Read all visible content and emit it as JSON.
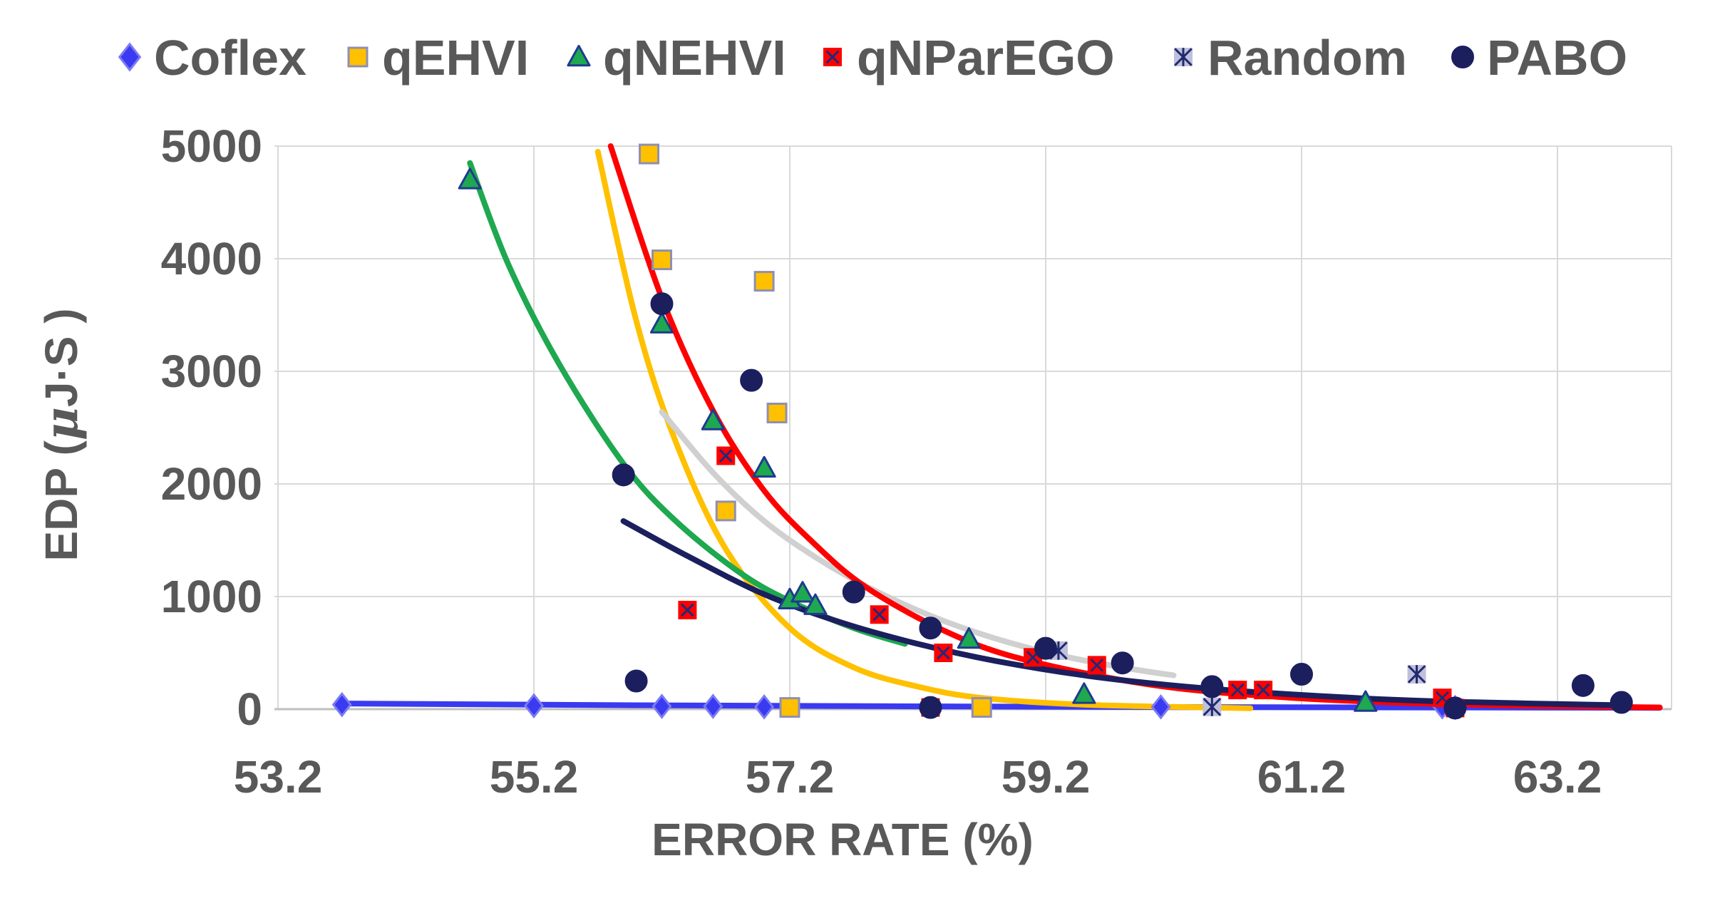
{
  "chart_data": {
    "type": "scatter",
    "title": "",
    "xlabel": "ERROR RATE (%)",
    "ylabel_parts": {
      "before": "EDP (",
      "mu": "μ",
      "after": "J·S )"
    },
    "xlim": [
      53.2,
      64.1
    ],
    "ylim": [
      0,
      5000
    ],
    "xticks": [
      53.2,
      55.2,
      57.2,
      59.2,
      61.2,
      63.2
    ],
    "xtick_labels": [
      "53.2",
      "55.2",
      "57.2",
      "59.2",
      "61.2",
      "63.2"
    ],
    "yticks": [
      0,
      1000,
      2000,
      3000,
      4000,
      5000
    ],
    "ytick_labels": [
      "0",
      "1000",
      "2000",
      "3000",
      "4000",
      "5000"
    ],
    "grid": true,
    "legend_position": "top",
    "series": [
      {
        "name": "Coflex",
        "marker": "diamond",
        "color": "#3a3af0",
        "edge": "#7a7af7",
        "points": [
          [
            53.7,
            40
          ],
          [
            55.2,
            30
          ],
          [
            56.2,
            25
          ],
          [
            56.6,
            25
          ],
          [
            57.0,
            20
          ],
          [
            60.1,
            20
          ],
          [
            62.3,
            20
          ],
          [
            62.4,
            15
          ]
        ]
      },
      {
        "name": "qEHVI",
        "marker": "square",
        "color": "#ffc000",
        "edge": "#8f8fb0",
        "points": [
          [
            56.1,
            4930
          ],
          [
            56.2,
            3990
          ],
          [
            57.0,
            3800
          ],
          [
            57.1,
            2630
          ],
          [
            56.7,
            1760
          ],
          [
            57.2,
            15
          ],
          [
            58.7,
            15
          ]
        ]
      },
      {
        "name": "qNEHVI",
        "marker": "triangle",
        "color": "#1ea84f",
        "edge": "#1f3b8f",
        "points": [
          [
            54.7,
            4700
          ],
          [
            56.2,
            3420
          ],
          [
            56.6,
            2560
          ],
          [
            57.0,
            2140
          ],
          [
            57.2,
            970
          ],
          [
            57.3,
            1030
          ],
          [
            57.4,
            920
          ],
          [
            58.6,
            620
          ],
          [
            59.5,
            130
          ],
          [
            61.7,
            60
          ]
        ]
      },
      {
        "name": "qNParEGO",
        "marker": "xsquare",
        "color": "#ff0000",
        "edge": "#1f2a7a",
        "points": [
          [
            56.4,
            880
          ],
          [
            56.7,
            2250
          ],
          [
            57.9,
            840
          ],
          [
            58.4,
            500
          ],
          [
            59.1,
            460
          ],
          [
            59.6,
            390
          ],
          [
            60.7,
            170
          ],
          [
            60.9,
            170
          ],
          [
            62.3,
            100
          ],
          [
            62.4,
            10
          ],
          [
            58.3,
            15
          ]
        ]
      },
      {
        "name": "Random",
        "marker": "asterisk",
        "color": "#c0c0dc",
        "edge": "#1f2a6e",
        "points": [
          [
            59.3,
            520
          ],
          [
            62.1,
            310
          ],
          [
            60.5,
            20
          ]
        ]
      },
      {
        "name": "PABO",
        "marker": "circle",
        "color": "#1b1f5e",
        "edge": "#1b1f5e",
        "points": [
          [
            55.9,
            2080
          ],
          [
            56.0,
            250
          ],
          [
            56.2,
            3600
          ],
          [
            56.9,
            2920
          ],
          [
            57.7,
            1040
          ],
          [
            58.3,
            720
          ],
          [
            59.2,
            540
          ],
          [
            59.8,
            410
          ],
          [
            60.5,
            200
          ],
          [
            61.2,
            310
          ],
          [
            63.4,
            210
          ],
          [
            63.7,
            60
          ],
          [
            58.3,
            15
          ],
          [
            62.4,
            10
          ]
        ]
      }
    ],
    "trendlines": [
      {
        "name": "Coflex trend",
        "color": "#3a3af0",
        "width": 8,
        "x_from": 53.7,
        "x_to": 64.0,
        "points": [
          [
            53.7,
            50
          ],
          [
            56.0,
            35
          ],
          [
            59.0,
            22
          ],
          [
            62.0,
            15
          ],
          [
            64.0,
            12
          ]
        ]
      },
      {
        "name": "qEHVI trend",
        "color": "#ffc000",
        "width": 8,
        "x_from": 55.7,
        "x_to": 60.8,
        "points": [
          [
            55.7,
            4950
          ],
          [
            56.0,
            3450
          ],
          [
            56.3,
            2400
          ],
          [
            56.7,
            1420
          ],
          [
            57.2,
            720
          ],
          [
            57.7,
            370
          ],
          [
            58.2,
            200
          ],
          [
            58.7,
            100
          ],
          [
            59.5,
            40
          ],
          [
            60.8,
            8
          ]
        ]
      },
      {
        "name": "qNEHVI trend",
        "color": "#1ea84f",
        "width": 8,
        "x_from": 54.7,
        "x_to": 58.1,
        "points": [
          [
            54.7,
            4850
          ],
          [
            55.0,
            3950
          ],
          [
            55.4,
            3060
          ],
          [
            55.9,
            2180
          ],
          [
            56.3,
            1680
          ],
          [
            56.8,
            1220
          ],
          [
            57.2,
            960
          ],
          [
            57.7,
            720
          ],
          [
            58.1,
            580
          ]
        ]
      },
      {
        "name": "qNParEGO trend",
        "color": "#ff0000",
        "width": 8,
        "x_from": 55.8,
        "x_to": 64.0,
        "points": [
          [
            55.8,
            5000
          ],
          [
            56.2,
            3650
          ],
          [
            56.6,
            2650
          ],
          [
            57.0,
            1940
          ],
          [
            57.4,
            1460
          ],
          [
            57.8,
            1080
          ],
          [
            58.4,
            700
          ],
          [
            59.0,
            450
          ],
          [
            60.0,
            220
          ],
          [
            61.0,
            110
          ],
          [
            62.0,
            55
          ],
          [
            63.0,
            30
          ],
          [
            64.0,
            15
          ]
        ]
      },
      {
        "name": "Random trend",
        "color": "#d0d0d0",
        "width": 8,
        "x_from": 56.2,
        "x_to": 60.2,
        "points": [
          [
            56.2,
            2640
          ],
          [
            56.6,
            2100
          ],
          [
            57.0,
            1670
          ],
          [
            57.4,
            1350
          ],
          [
            57.8,
            1090
          ],
          [
            58.3,
            830
          ],
          [
            58.8,
            630
          ],
          [
            59.3,
            480
          ],
          [
            59.8,
            370
          ],
          [
            60.2,
            300
          ]
        ]
      },
      {
        "name": "PABO trend",
        "color": "#1b1f5e",
        "width": 8,
        "x_from": 55.9,
        "x_to": 63.7,
        "points": [
          [
            55.9,
            1670
          ],
          [
            56.4,
            1360
          ],
          [
            57.0,
            1020
          ],
          [
            57.6,
            770
          ],
          [
            58.2,
            580
          ],
          [
            58.8,
            430
          ],
          [
            59.5,
            300
          ],
          [
            60.2,
            210
          ],
          [
            61.0,
            140
          ],
          [
            62.0,
            80
          ],
          [
            63.0,
            50
          ],
          [
            63.7,
            35
          ]
        ]
      }
    ]
  }
}
